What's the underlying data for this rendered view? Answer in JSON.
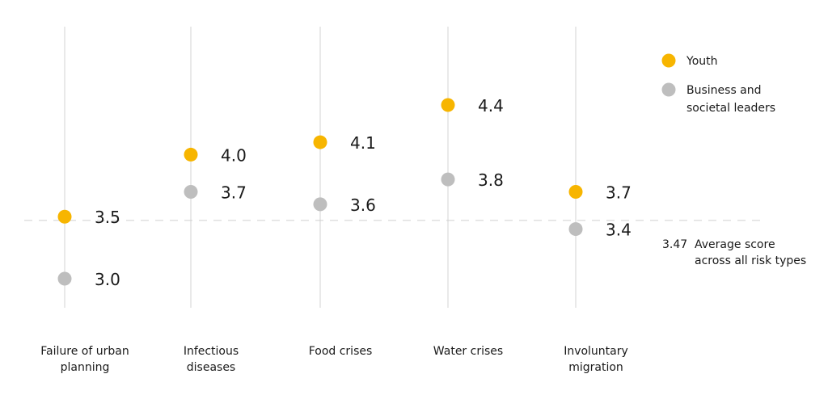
{
  "chart_data": {
    "type": "dumbbell",
    "categories": [
      [
        "Failure of urban",
        "planning"
      ],
      [
        "Infectious",
        "diseases"
      ],
      [
        "Food crises"
      ],
      [
        "Water crises"
      ],
      [
        "Involuntary",
        "migration"
      ]
    ],
    "series": [
      {
        "name": "Youth",
        "color": "#F7B500",
        "values": [
          3.5,
          4.0,
          4.1,
          4.4,
          3.7
        ],
        "labels": [
          "3.5",
          "4.0",
          "4.1",
          "4.4",
          "3.7"
        ]
      },
      {
        "name": "Business and societal leaders",
        "color": "#BEBEBE",
        "values": [
          3.0,
          3.7,
          3.6,
          3.8,
          3.4
        ],
        "labels": [
          "3.0",
          "3.7",
          "3.6",
          "3.8",
          "3.4"
        ]
      }
    ],
    "legend": {
      "placement": "top-right",
      "items": [
        {
          "lines": [
            "Youth"
          ],
          "color": "#F7B500"
        },
        {
          "lines": [
            "Business and",
            "societal leaders"
          ],
          "color": "#BEBEBE"
        }
      ]
    },
    "average": {
      "value": 3.47,
      "value_label": "3.47",
      "lines": [
        "Average score",
        "across all risk types"
      ]
    },
    "colors": {
      "connector": "#E8C05A",
      "gridline": "#E2E2E2",
      "average_line": "#CFCFCF"
    },
    "grid": true,
    "ylim": [
      2.8,
      4.8
    ],
    "title": "",
    "xlabel": "",
    "ylabel": ""
  }
}
